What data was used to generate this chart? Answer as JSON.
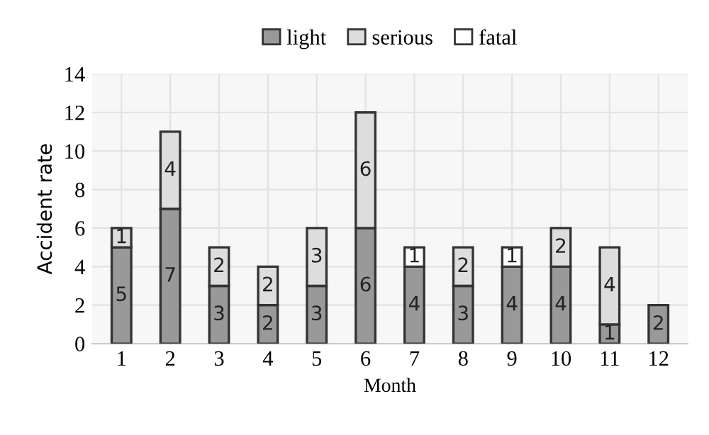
{
  "chart_data": {
    "type": "bar",
    "stacked": true,
    "xlabel": "Month",
    "ylabel": "Accident rate",
    "categories": [
      "1",
      "2",
      "3",
      "4",
      "5",
      "6",
      "7",
      "8",
      "9",
      "10",
      "11",
      "12"
    ],
    "series": [
      {
        "name": "light",
        "color": "#999999",
        "values": [
          5,
          7,
          3,
          2,
          3,
          6,
          4,
          3,
          4,
          4,
          1,
          2
        ],
        "value_labels": [
          "5",
          "7",
          "3",
          "2",
          "3",
          "6",
          "4",
          "3",
          "4",
          "4",
          "1",
          "2"
        ]
      },
      {
        "name": "serious",
        "color": "#dddddd",
        "values": [
          1,
          4,
          2,
          2,
          3,
          6,
          null,
          2,
          null,
          2,
          4,
          null
        ],
        "value_labels": [
          "1",
          "4",
          "2",
          "2",
          "3",
          "6",
          null,
          "2",
          null,
          "2",
          "4",
          null
        ]
      },
      {
        "name": "fatal",
        "color": "#ffffff",
        "values": [
          null,
          null,
          null,
          null,
          null,
          null,
          1,
          null,
          1,
          null,
          null,
          null
        ],
        "value_labels": [
          null,
          null,
          null,
          null,
          null,
          null,
          "1",
          null,
          "1",
          null,
          null,
          null
        ]
      }
    ],
    "ylim": [
      0,
      14
    ],
    "yticks": [
      0,
      2,
      4,
      6,
      8,
      10,
      12,
      14
    ],
    "grid": true,
    "legend": "top"
  }
}
